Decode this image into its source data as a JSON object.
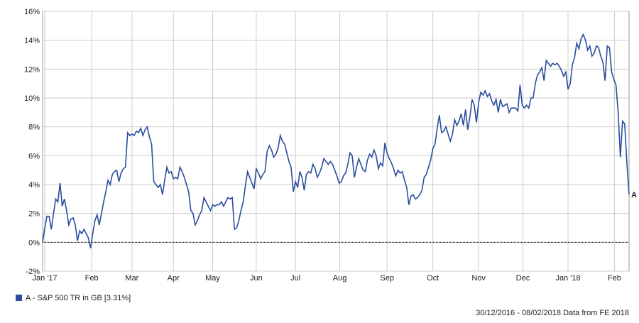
{
  "chart_data": {
    "type": "line",
    "series": [
      {
        "name": "A - S&P 500 TR in GB [3.31%]",
        "color": "#2a4d9f",
        "end_label": "A",
        "values": [
          0,
          1,
          1.8,
          1.8,
          0.9,
          2,
          3,
          2.8,
          4.1,
          2.5,
          3,
          2.2,
          1.2,
          1.6,
          1.7,
          1.2,
          0.1,
          0.8,
          0.6,
          0.9,
          0.6,
          0.3,
          -0.4,
          0.6,
          1.5,
          1.9,
          1.2,
          2,
          2.8,
          3.5,
          4.3,
          4,
          4.7,
          4.9,
          5,
          4.2,
          4.8,
          5.1,
          5.2,
          7.6,
          7.4,
          7.5,
          7.4,
          7.7,
          7.6,
          7.9,
          7.4,
          7.8,
          8,
          7.3,
          6.8,
          4.2,
          4,
          3.8,
          4,
          3.3,
          4.3,
          5.2,
          4.8,
          4.9,
          4.4,
          4.5,
          4.4,
          5.2,
          4.9,
          4.5,
          4,
          3.5,
          2.2,
          2,
          1.2,
          1.5,
          1.9,
          2.2,
          3.1,
          2.8,
          2.5,
          2.2,
          2.6,
          2.5,
          2.6,
          2.6,
          2.8,
          2.5,
          2.8,
          3.1,
          3,
          3.1,
          0.9,
          1,
          1.5,
          2.2,
          2.8,
          3.9,
          4.9,
          4.5,
          4.1,
          3.7,
          5.1,
          4.8,
          4.4,
          4.7,
          4.9,
          6.3,
          6.7,
          6.4,
          5.9,
          6.1,
          6.5,
          7.4,
          7,
          6.8,
          6.2,
          5.6,
          5.2,
          3.5,
          4.2,
          3.8,
          4.9,
          4.5,
          3.6,
          4.7,
          4.9,
          4.8,
          5.4,
          5.1,
          4.5,
          4.8,
          5.2,
          5.8,
          5.6,
          5.4,
          5.6,
          5.4,
          5,
          4.6,
          4.1,
          4.2,
          4.6,
          4.8,
          5.4,
          6.2,
          6,
          4.5,
          5.2,
          5.8,
          5.4,
          5,
          4.9,
          5.7,
          6.1,
          5.9,
          6.4,
          6,
          5.1,
          5.5,
          5.3,
          6.9,
          6.2,
          5.8,
          5.5,
          5.1,
          4.6,
          5,
          4.8,
          4.9,
          4.3,
          3.8,
          2.6,
          3.2,
          3.3,
          3,
          3.1,
          3.3,
          3.6,
          4.5,
          4.7,
          5.2,
          5.7,
          6.5,
          6.8,
          7.9,
          8.8,
          7.6,
          7.7,
          8,
          7.5,
          7,
          7.5,
          8.5,
          8.1,
          8.4,
          8.9,
          8.1,
          9.2,
          7.8,
          8.7,
          9.9,
          9.5,
          8.3,
          9.7,
          10.4,
          10.2,
          10.5,
          10.1,
          10.3,
          9.8,
          9.5,
          9.9,
          9,
          9.9,
          9.4,
          9.5,
          9.6,
          9,
          9.3,
          9.3,
          9.3,
          9.1,
          10.9,
          9.5,
          9.3,
          9.5,
          9.3,
          10,
          10,
          11,
          11.6,
          11.8,
          12.1,
          11.2,
          12.6,
          12.4,
          12.2,
          12.4,
          12.3,
          12.4,
          12.2,
          11.9,
          11.5,
          11.8,
          10.6,
          11,
          12.3,
          12.8,
          13.8,
          13.4,
          14.1,
          14.4,
          14,
          13.3,
          13.6,
          12.9,
          13.1,
          13.6,
          13.5,
          12.9,
          12.5,
          11.2,
          13.6,
          13.5,
          11.8,
          11.3,
          10.9,
          9,
          5.9,
          8.4,
          8.2,
          5.5,
          3.31
        ]
      }
    ],
    "xlim": [
      0,
      269
    ],
    "xticks": [
      {
        "value": 1,
        "label": "Jan '17"
      },
      {
        "value": 22.5,
        "label": "Feb"
      },
      {
        "value": 41,
        "label": "Mar"
      },
      {
        "value": 60,
        "label": "Apr"
      },
      {
        "value": 78,
        "label": "May"
      },
      {
        "value": 98,
        "label": "Jun"
      },
      {
        "value": 116,
        "label": "Jul"
      },
      {
        "value": 136.3,
        "label": "Aug"
      },
      {
        "value": 158,
        "label": "Sep"
      },
      {
        "value": 179,
        "label": "Oct"
      },
      {
        "value": 200,
        "label": "Nov"
      },
      {
        "value": 220.3,
        "label": "Dec"
      },
      {
        "value": 241,
        "label": "Jan '18"
      },
      {
        "value": 262.3,
        "label": "Feb"
      }
    ],
    "ylim": [
      -2,
      16
    ],
    "yticks": [
      {
        "value": -2,
        "label": "-2%"
      },
      {
        "value": 0,
        "label": "0%"
      },
      {
        "value": 2,
        "label": "2%"
      },
      {
        "value": 4,
        "label": "4%"
      },
      {
        "value": 6,
        "label": "6%"
      },
      {
        "value": 8,
        "label": "8%"
      },
      {
        "value": 10,
        "label": "10%"
      },
      {
        "value": 12,
        "label": "12%"
      },
      {
        "value": 14,
        "label": "14%"
      },
      {
        "value": 16,
        "label": "16%"
      }
    ],
    "grid": true,
    "footnote": "30/12/2016 - 08/02/2018 Data from FE 2018"
  }
}
